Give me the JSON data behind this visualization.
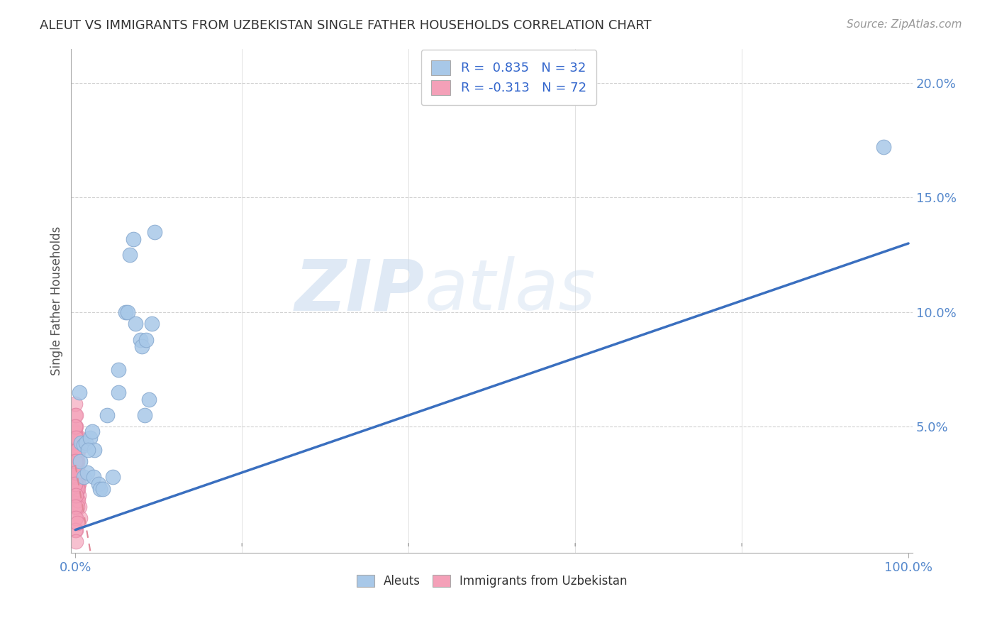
{
  "title": "ALEUT VS IMMIGRANTS FROM UZBEKISTAN SINGLE FATHER HOUSEHOLDS CORRELATION CHART",
  "source": "Source: ZipAtlas.com",
  "ylabel": "Single Father Households",
  "background_color": "#ffffff",
  "plot_bg_color": "#ffffff",
  "grid_color": "#cccccc",
  "aleut_color": "#a8c8e8",
  "uzbek_color": "#f4a0b8",
  "aleut_edge_color": "#88aad0",
  "uzbek_edge_color": "#e080a0",
  "trend_blue_color": "#3a6fbf",
  "trend_pink_color": "#e08898",
  "title_color": "#333333",
  "axis_label_color": "#5588cc",
  "legend_text_color": "#3366cc",
  "R_aleut": 0.835,
  "N_aleut": 32,
  "R_uzbek": -0.313,
  "N_uzbek": 72,
  "aleuts_x": [
    0.005,
    0.007,
    0.01,
    0.01,
    0.013,
    0.014,
    0.018,
    0.02,
    0.022,
    0.023,
    0.028,
    0.03,
    0.038,
    0.045,
    0.052,
    0.052,
    0.06,
    0.063,
    0.065,
    0.07,
    0.072,
    0.078,
    0.08,
    0.083,
    0.085,
    0.088,
    0.092,
    0.095,
    0.97,
    0.006,
    0.015,
    0.033
  ],
  "aleuts_y": [
    0.065,
    0.043,
    0.028,
    0.042,
    0.043,
    0.03,
    0.045,
    0.048,
    0.028,
    0.04,
    0.025,
    0.023,
    0.055,
    0.028,
    0.065,
    0.075,
    0.1,
    0.1,
    0.125,
    0.132,
    0.095,
    0.088,
    0.085,
    0.055,
    0.088,
    0.062,
    0.095,
    0.135,
    0.172,
    0.035,
    0.04,
    0.023
  ],
  "uzbek_x": [
    0.0,
    0.001,
    0.002,
    0.003,
    0.004,
    0.005,
    0.001,
    0.002,
    0.0,
    0.001,
    0.002,
    0.0,
    0.001,
    0.003,
    0.0,
    0.001,
    0.002,
    0.0,
    0.001,
    0.002,
    0.003,
    0.004,
    0.005,
    0.006,
    0.0,
    0.001,
    0.002,
    0.003,
    0.004,
    0.0,
    0.001,
    0.002,
    0.003,
    0.0,
    0.001,
    0.002,
    0.0,
    0.001,
    0.0,
    0.001,
    0.002,
    0.0,
    0.001,
    0.002,
    0.003,
    0.0,
    0.001,
    0.0,
    0.001,
    0.002,
    0.0,
    0.001,
    0.002,
    0.0,
    0.001,
    0.0,
    0.001,
    0.002,
    0.0,
    0.001,
    0.0,
    0.001,
    0.002,
    0.0,
    0.001,
    0.0,
    0.001,
    0.0,
    0.001,
    0.0,
    0.001,
    0.002
  ],
  "uzbek_y": [
    0.035,
    0.04,
    0.03,
    0.025,
    0.04,
    0.045,
    0.03,
    0.028,
    0.02,
    0.038,
    0.035,
    0.015,
    0.032,
    0.028,
    0.025,
    0.022,
    0.018,
    0.04,
    0.035,
    0.03,
    0.025,
    0.02,
    0.015,
    0.01,
    0.045,
    0.04,
    0.035,
    0.03,
    0.025,
    0.038,
    0.033,
    0.028,
    0.023,
    0.042,
    0.037,
    0.032,
    0.027,
    0.022,
    0.048,
    0.043,
    0.038,
    0.033,
    0.028,
    0.023,
    0.018,
    0.05,
    0.045,
    0.04,
    0.035,
    0.03,
    0.025,
    0.02,
    0.015,
    0.01,
    0.005,
    0.055,
    0.05,
    0.045,
    0.06,
    0.055,
    0.05,
    0.045,
    0.04,
    0.035,
    0.03,
    0.025,
    0.02,
    0.015,
    0.01,
    0.005,
    0.0,
    0.008
  ],
  "xlim": [
    -0.005,
    1.005
  ],
  "ylim": [
    -0.005,
    0.215
  ],
  "xtick_positions": [
    0.0,
    1.0
  ],
  "xtick_labels": [
    "0.0%",
    "100.0%"
  ],
  "ytick_positions": [
    0.05,
    0.1,
    0.15,
    0.2
  ],
  "ytick_labels": [
    "5.0%",
    "10.0%",
    "15.0%",
    "20.0%"
  ],
  "watermark_zip": "ZIP",
  "watermark_atlas": "atlas",
  "trend_blue_x0": 0.0,
  "trend_blue_y0": 0.005,
  "trend_blue_x1": 1.0,
  "trend_blue_y1": 0.13
}
